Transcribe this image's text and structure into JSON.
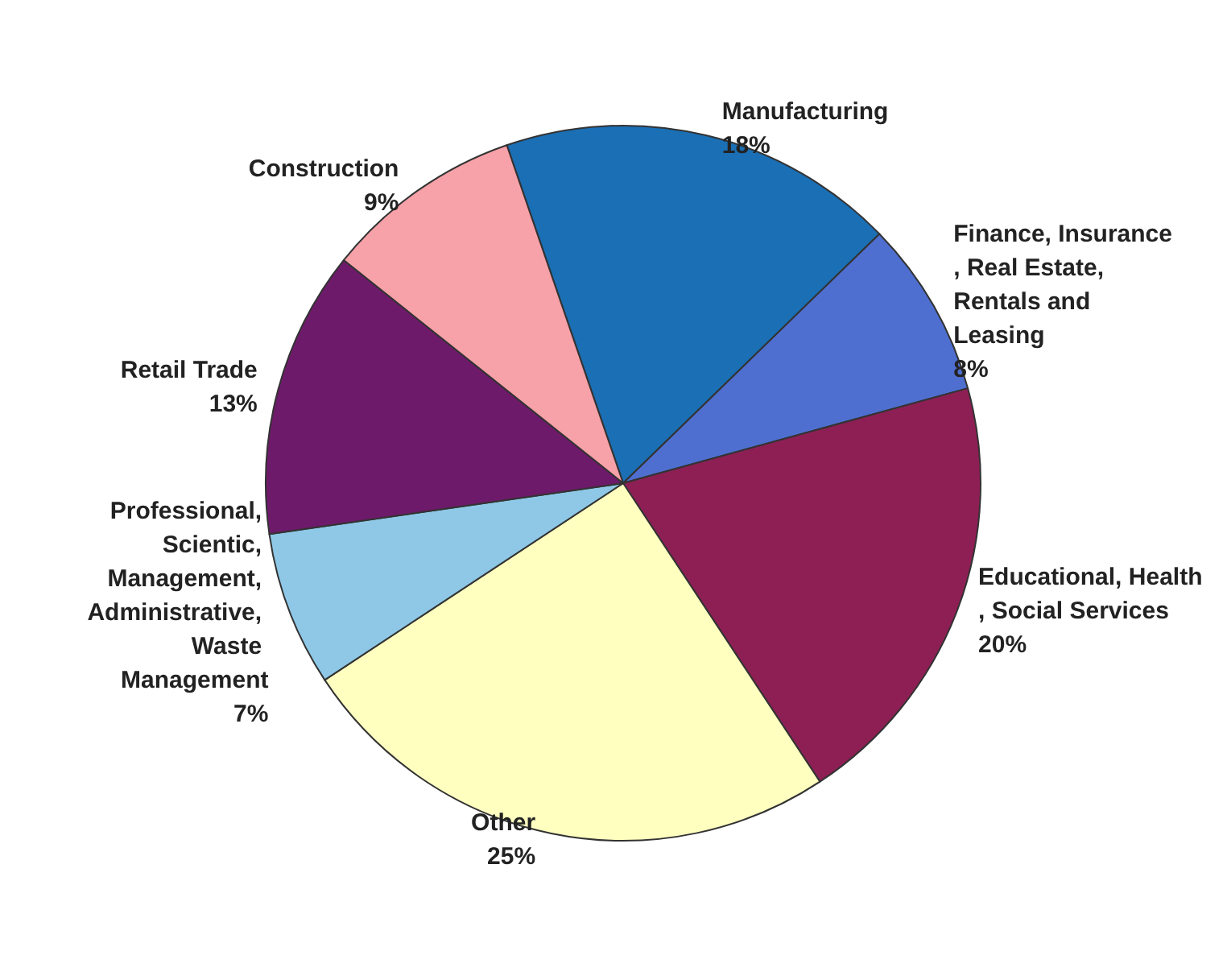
{
  "chart_data": {
    "type": "pie",
    "categories": [
      "Manufacturing",
      "Finance, Insurance, Real Estate, Rentals and Leasing",
      "Educational, Health, Social Services",
      "Other",
      "Professional, Scientic, Management, Administrative, Waste Management",
      "Retail Trade",
      "Construction"
    ],
    "values": [
      18,
      8,
      20,
      25,
      7,
      13,
      9
    ],
    "colors": [
      "#1a6fb5",
      "#4f6fd0",
      "#8e1f55",
      "#ffffc0",
      "#8ec8e6",
      "#6e1a6a",
      "#f7a1a8"
    ],
    "value_labels": [
      "18%",
      "8%",
      "20%",
      "25%",
      "7%",
      "13%",
      "9%"
    ]
  }
}
